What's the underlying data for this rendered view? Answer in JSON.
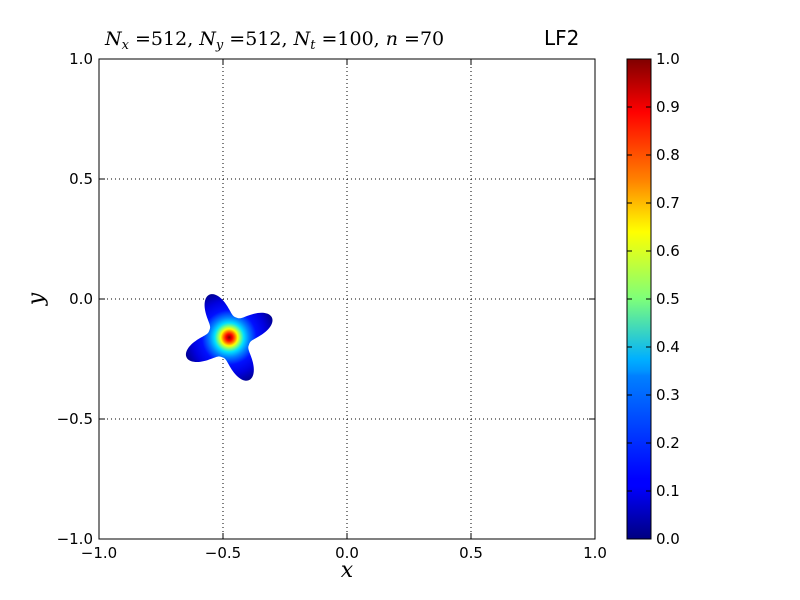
{
  "chart_data": {
    "type": "heatmap",
    "title": "N_x =512, N_y =512, N_t =100, n =70",
    "title_right": "LF2",
    "xlabel": "x",
    "ylabel": "y",
    "xlim": [
      -1.0,
      1.0
    ],
    "ylim": [
      -1.0,
      1.0
    ],
    "xticks": [
      -1.0,
      -0.5,
      0.0,
      0.5,
      1.0
    ],
    "yticks": [
      -1.0,
      -0.5,
      0.0,
      0.5,
      1.0
    ],
    "xtick_labels": [
      "−1.0",
      "−0.5",
      "0.0",
      "0.5",
      "1.0"
    ],
    "ytick_labels": [
      "−1.0",
      "−0.5",
      "0.0",
      "0.5",
      "1.0"
    ],
    "grid": true,
    "grid_style": "dotted",
    "colormap": "jet",
    "colorbar_range": [
      0.0,
      1.0
    ],
    "colorbar_ticks": [
      0.0,
      0.1,
      0.2,
      0.3,
      0.4,
      0.5,
      0.6,
      0.7,
      0.8,
      0.9,
      1.0
    ],
    "colorbar_tick_labels": [
      "0.0",
      "0.1",
      "0.2",
      "0.3",
      "0.4",
      "0.5",
      "0.6",
      "0.7",
      "0.8",
      "0.9",
      "1.0"
    ],
    "blob": {
      "center": [
        -0.475,
        -0.16
      ],
      "peak_value": 1.0,
      "arms": 4,
      "arm_orientation_deg": 25,
      "arm_tip_radius": 0.19,
      "arm_valley_radius": 0.085,
      "core_radius": 0.04
    }
  }
}
